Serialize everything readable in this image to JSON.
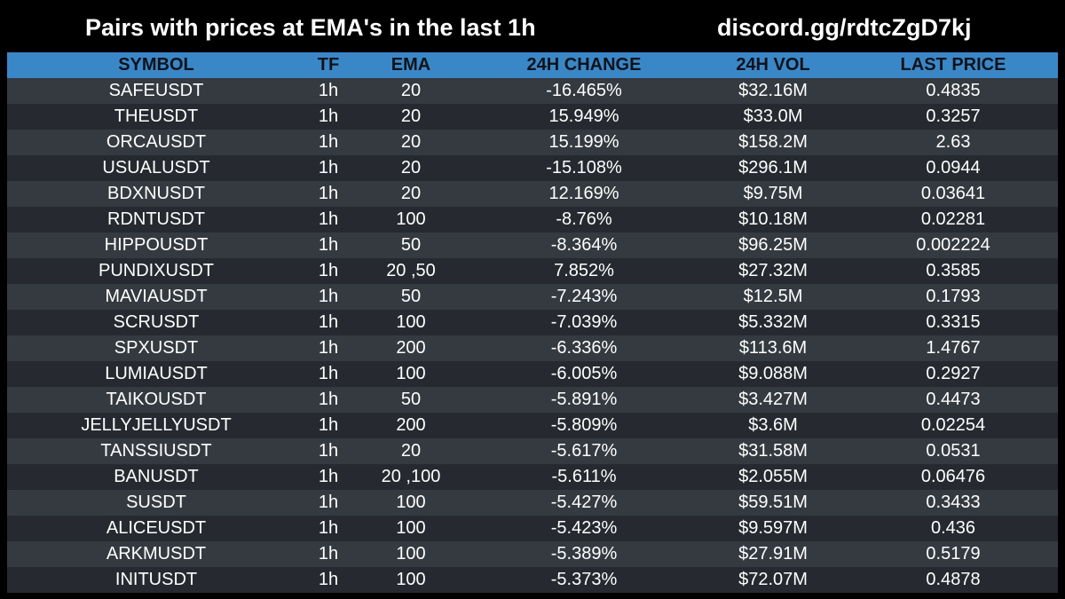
{
  "header": {
    "title": "Pairs with prices at EMA's in the last 1h",
    "discord": "discord.gg/rdtcZgD7kj"
  },
  "columns": [
    "SYMBOL",
    "TF",
    "EMA",
    "24H CHANGE",
    "24H VOL",
    "LAST PRICE"
  ],
  "rows": [
    [
      "SAFEUSDT",
      "1h",
      "20",
      "-16.465%",
      "$32.16M",
      "0.4835"
    ],
    [
      "THEUSDT",
      "1h",
      "20",
      "15.949%",
      "$33.0M",
      "0.3257"
    ],
    [
      "ORCAUSDT",
      "1h",
      "20",
      "15.199%",
      "$158.2M",
      "2.63"
    ],
    [
      "USUALUSDT",
      "1h",
      "20",
      "-15.108%",
      "$296.1M",
      "0.0944"
    ],
    [
      "BDXNUSDT",
      "1h",
      "20",
      "12.169%",
      "$9.75M",
      "0.03641"
    ],
    [
      "RDNTUSDT",
      "1h",
      "100",
      "-8.76%",
      "$10.18M",
      "0.02281"
    ],
    [
      "HIPPOUSDT",
      "1h",
      "50",
      "-8.364%",
      "$96.25M",
      "0.002224"
    ],
    [
      "PUNDIXUSDT",
      "1h",
      "20 ,50",
      "7.852%",
      "$27.32M",
      "0.3585"
    ],
    [
      "MAVIAUSDT",
      "1h",
      "50",
      "-7.243%",
      "$12.5M",
      "0.1793"
    ],
    [
      "SCRUSDT",
      "1h",
      "100",
      "-7.039%",
      "$5.332M",
      "0.3315"
    ],
    [
      "SPXUSDT",
      "1h",
      "200",
      "-6.336%",
      "$113.6M",
      "1.4767"
    ],
    [
      "LUMIAUSDT",
      "1h",
      "100",
      "-6.005%",
      "$9.088M",
      "0.2927"
    ],
    [
      "TAIKOUSDT",
      "1h",
      "50",
      "-5.891%",
      "$3.427M",
      "0.4473"
    ],
    [
      "JELLYJELLYUSDT",
      "1h",
      "200",
      "-5.809%",
      "$3.6M",
      "0.02254"
    ],
    [
      "TANSSIUSDT",
      "1h",
      "20",
      "-5.617%",
      "$31.58M",
      "0.0531"
    ],
    [
      "BANUSDT",
      "1h",
      "20 ,100",
      "-5.611%",
      "$2.055M",
      "0.06476"
    ],
    [
      "SUSDT",
      "1h",
      "100",
      "-5.427%",
      "$59.51M",
      "0.3433"
    ],
    [
      "ALICEUSDT",
      "1h",
      "100",
      "-5.423%",
      "$9.597M",
      "0.436"
    ],
    [
      "ARKMUSDT",
      "1h",
      "100",
      "-5.389%",
      "$27.91M",
      "0.5179"
    ],
    [
      "INITUSDT",
      "1h",
      "100",
      "-5.373%",
      "$72.07M",
      "0.4878"
    ]
  ],
  "colors": {
    "background": "#000000",
    "header_row": "#3a87c8",
    "row_odd": "#353a40",
    "row_even": "#262a30",
    "text": "#ffffff"
  }
}
